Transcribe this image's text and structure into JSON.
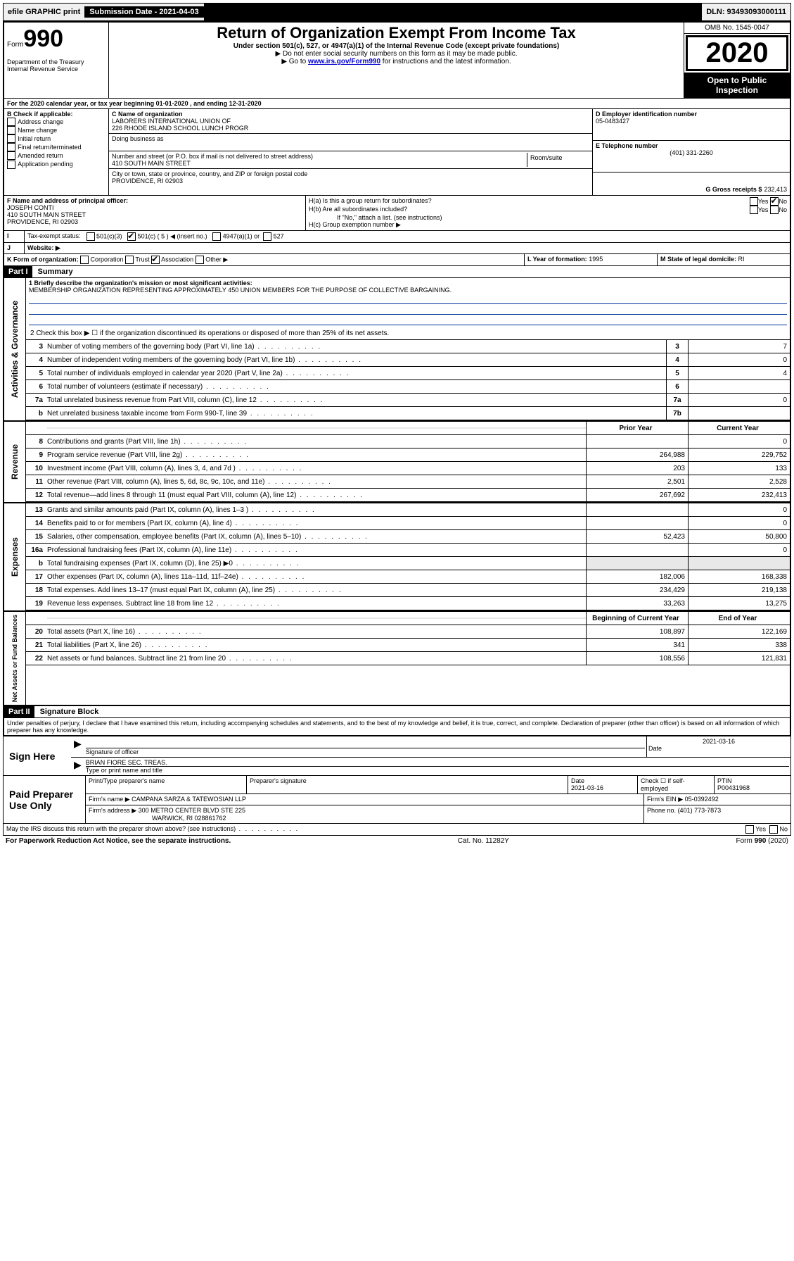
{
  "topbar": {
    "efile": "efile GRAPHIC print",
    "submission": "Submission Date - 2021-04-03",
    "dln": "DLN: 93493093000111"
  },
  "header": {
    "form_prefix": "Form",
    "form_no": "990",
    "dept": "Department of the Treasury\nInternal Revenue Service",
    "title": "Return of Organization Exempt From Income Tax",
    "subtitle": "Under section 501(c), 527, or 4947(a)(1) of the Internal Revenue Code (except private foundations)",
    "hint1": "▶ Do not enter social security numbers on this form as it may be made public.",
    "hint2_pre": "▶ Go to ",
    "hint2_link": "www.irs.gov/Form990",
    "hint2_post": " for instructions and the latest information.",
    "omb": "OMB No. 1545-0047",
    "year": "2020",
    "open": "Open to Public Inspection"
  },
  "line_a": "For the 2020 calendar year, or tax year beginning 01-01-2020    , and ending 12-31-2020",
  "boxB": {
    "label": "B Check if applicable:",
    "items": [
      "Address change",
      "Name change",
      "Initial return",
      "Final return/terminated",
      "Amended return",
      "Application pending"
    ]
  },
  "boxC": {
    "name_label": "C Name of organization",
    "name1": "LABORERS INTERNATIONAL UNION OF",
    "name2": "226 RHODE ISLAND SCHOOL LUNCH PROGR",
    "dba_label": "Doing business as",
    "addr_label": "Number and street (or P.O. box if mail is not delivered to street address)",
    "room_label": "Room/suite",
    "addr": "410 SOUTH MAIN STREET",
    "city_label": "City or town, state or province, country, and ZIP or foreign postal code",
    "city": "PROVIDENCE, RI  02903"
  },
  "boxD": {
    "label": "D Employer identification number",
    "value": "05-0483427"
  },
  "boxE": {
    "label": "E Telephone number",
    "value": "(401) 331-2260"
  },
  "boxG": {
    "label": "G Gross receipts $",
    "value": "232,413"
  },
  "boxF": {
    "label": "F  Name and address of principal officer:",
    "name": "JOSEPH CONTI",
    "addr1": "410 SOUTH MAIN STREET",
    "addr2": "PROVIDENCE, RI  02903"
  },
  "boxH": {
    "a": "H(a)  Is this a group return for subordinates?",
    "b": "H(b)  Are all subordinates included?",
    "b_note": "If \"No,\" attach a list. (see instructions)",
    "c": "H(c)  Group exemption number ▶",
    "yes": "Yes",
    "no": "No"
  },
  "boxI": {
    "label": "Tax-exempt status:",
    "opts": [
      "501(c)(3)",
      "501(c) ( 5 ) ◀ (insert no.)",
      "4947(a)(1) or",
      "527"
    ]
  },
  "boxJ": {
    "label": "Website: ▶"
  },
  "boxK": {
    "label": "K Form of organization:",
    "opts": [
      "Corporation",
      "Trust",
      "Association",
      "Other ▶"
    ]
  },
  "boxL": {
    "label": "L Year of formation:",
    "value": "1995"
  },
  "boxM": {
    "label": "M State of legal domicile:",
    "value": "RI"
  },
  "part1": {
    "header": "Part I",
    "title": "Summary",
    "line1_label": "1  Briefly describe the organization's mission or most significant activities:",
    "line1_text": "MEMBERSHIP ORGANIZATION REPRESENTING APPROXIMATELY 450 UNION MEMBERS FOR THE PURPOSE OF COLLECTIVE BARGAINING.",
    "line2": "2   Check this box ▶ ☐  if the organization discontinued its operations or disposed of more than 25% of its net assets.",
    "sections": {
      "gov": "Activities & Governance",
      "rev": "Revenue",
      "exp": "Expenses",
      "net": "Net Assets or Fund Balances"
    },
    "rows_gov": [
      {
        "n": "3",
        "d": "Number of voting members of the governing body (Part VI, line 1a)",
        "k": "3",
        "v": "7"
      },
      {
        "n": "4",
        "d": "Number of independent voting members of the governing body (Part VI, line 1b)",
        "k": "4",
        "v": "0"
      },
      {
        "n": "5",
        "d": "Total number of individuals employed in calendar year 2020 (Part V, line 2a)",
        "k": "5",
        "v": "4"
      },
      {
        "n": "6",
        "d": "Total number of volunteers (estimate if necessary)",
        "k": "6",
        "v": ""
      },
      {
        "n": "7a",
        "d": "Total unrelated business revenue from Part VIII, column (C), line 12",
        "k": "7a",
        "v": "0"
      },
      {
        "n": "b",
        "d": "Net unrelated business taxable income from Form 990-T, line 39",
        "k": "7b",
        "v": ""
      }
    ],
    "col_prior": "Prior Year",
    "col_current": "Current Year",
    "rows_rev": [
      {
        "n": "8",
        "d": "Contributions and grants (Part VIII, line 1h)",
        "p": "",
        "c": "0"
      },
      {
        "n": "9",
        "d": "Program service revenue (Part VIII, line 2g)",
        "p": "264,988",
        "c": "229,752"
      },
      {
        "n": "10",
        "d": "Investment income (Part VIII, column (A), lines 3, 4, and 7d )",
        "p": "203",
        "c": "133"
      },
      {
        "n": "11",
        "d": "Other revenue (Part VIII, column (A), lines 5, 6d, 8c, 9c, 10c, and 11e)",
        "p": "2,501",
        "c": "2,528"
      },
      {
        "n": "12",
        "d": "Total revenue—add lines 8 through 11 (must equal Part VIII, column (A), line 12)",
        "p": "267,692",
        "c": "232,413"
      }
    ],
    "rows_exp": [
      {
        "n": "13",
        "d": "Grants and similar amounts paid (Part IX, column (A), lines 1–3 )",
        "p": "",
        "c": "0"
      },
      {
        "n": "14",
        "d": "Benefits paid to or for members (Part IX, column (A), line 4)",
        "p": "",
        "c": "0"
      },
      {
        "n": "15",
        "d": "Salaries, other compensation, employee benefits (Part IX, column (A), lines 5–10)",
        "p": "52,423",
        "c": "50,800"
      },
      {
        "n": "16a",
        "d": "Professional fundraising fees (Part IX, column (A), line 11e)",
        "p": "",
        "c": "0"
      },
      {
        "n": "b",
        "d": "Total fundraising expenses (Part IX, column (D), line 25) ▶0",
        "p": "GREY",
        "c": "GREY"
      },
      {
        "n": "17",
        "d": "Other expenses (Part IX, column (A), lines 11a–11d, 11f–24e)",
        "p": "182,006",
        "c": "168,338"
      },
      {
        "n": "18",
        "d": "Total expenses. Add lines 13–17 (must equal Part IX, column (A), line 25)",
        "p": "234,429",
        "c": "219,138"
      },
      {
        "n": "19",
        "d": "Revenue less expenses. Subtract line 18 from line 12",
        "p": "33,263",
        "c": "13,275"
      }
    ],
    "col_begin": "Beginning of Current Year",
    "col_end": "End of Year",
    "rows_net": [
      {
        "n": "20",
        "d": "Total assets (Part X, line 16)",
        "p": "108,897",
        "c": "122,169"
      },
      {
        "n": "21",
        "d": "Total liabilities (Part X, line 26)",
        "p": "341",
        "c": "338"
      },
      {
        "n": "22",
        "d": "Net assets or fund balances. Subtract line 21 from line 20",
        "p": "108,556",
        "c": "121,831"
      }
    ]
  },
  "part2": {
    "header": "Part II",
    "title": "Signature Block",
    "decl": "Under penalties of perjury, I declare that I have examined this return, including accompanying schedules and statements, and to the best of my knowledge and belief, it is true, correct, and complete. Declaration of preparer (other than officer) is based on all information of which preparer has any knowledge."
  },
  "sign": {
    "label": "Sign Here",
    "sig_officer": "Signature of officer",
    "date": "2021-03-16",
    "date_label": "Date",
    "name": "BRIAN FIORE SEC. TREAS.",
    "name_label": "Type or print name and title"
  },
  "preparer": {
    "label": "Paid Preparer Use Only",
    "h1": "Print/Type preparer's name",
    "h2": "Preparer's signature",
    "h3": "Date",
    "h4": "Check ☐ if self-employed",
    "h5": "PTIN",
    "date": "2021-03-16",
    "ptin": "P00431968",
    "firm_name_label": "Firm's name     ▶",
    "firm_name": "CAMPANA SARZA & TATEWOSIAN LLP",
    "firm_ein_label": "Firm's EIN ▶",
    "firm_ein": "05-0392492",
    "firm_addr_label": "Firm's address ▶",
    "firm_addr1": "300 METRO CENTER BLVD STE 225",
    "firm_addr2": "WARWICK, RI  028861762",
    "phone_label": "Phone no.",
    "phone": "(401) 773-7873"
  },
  "footer": {
    "discuss": "May the IRS discuss this return with the preparer shown above? (see instructions)",
    "yes": "Yes",
    "no": "No",
    "paperwork": "For Paperwork Reduction Act Notice, see the separate instructions.",
    "cat": "Cat. No. 11282Y",
    "form": "Form 990 (2020)"
  }
}
